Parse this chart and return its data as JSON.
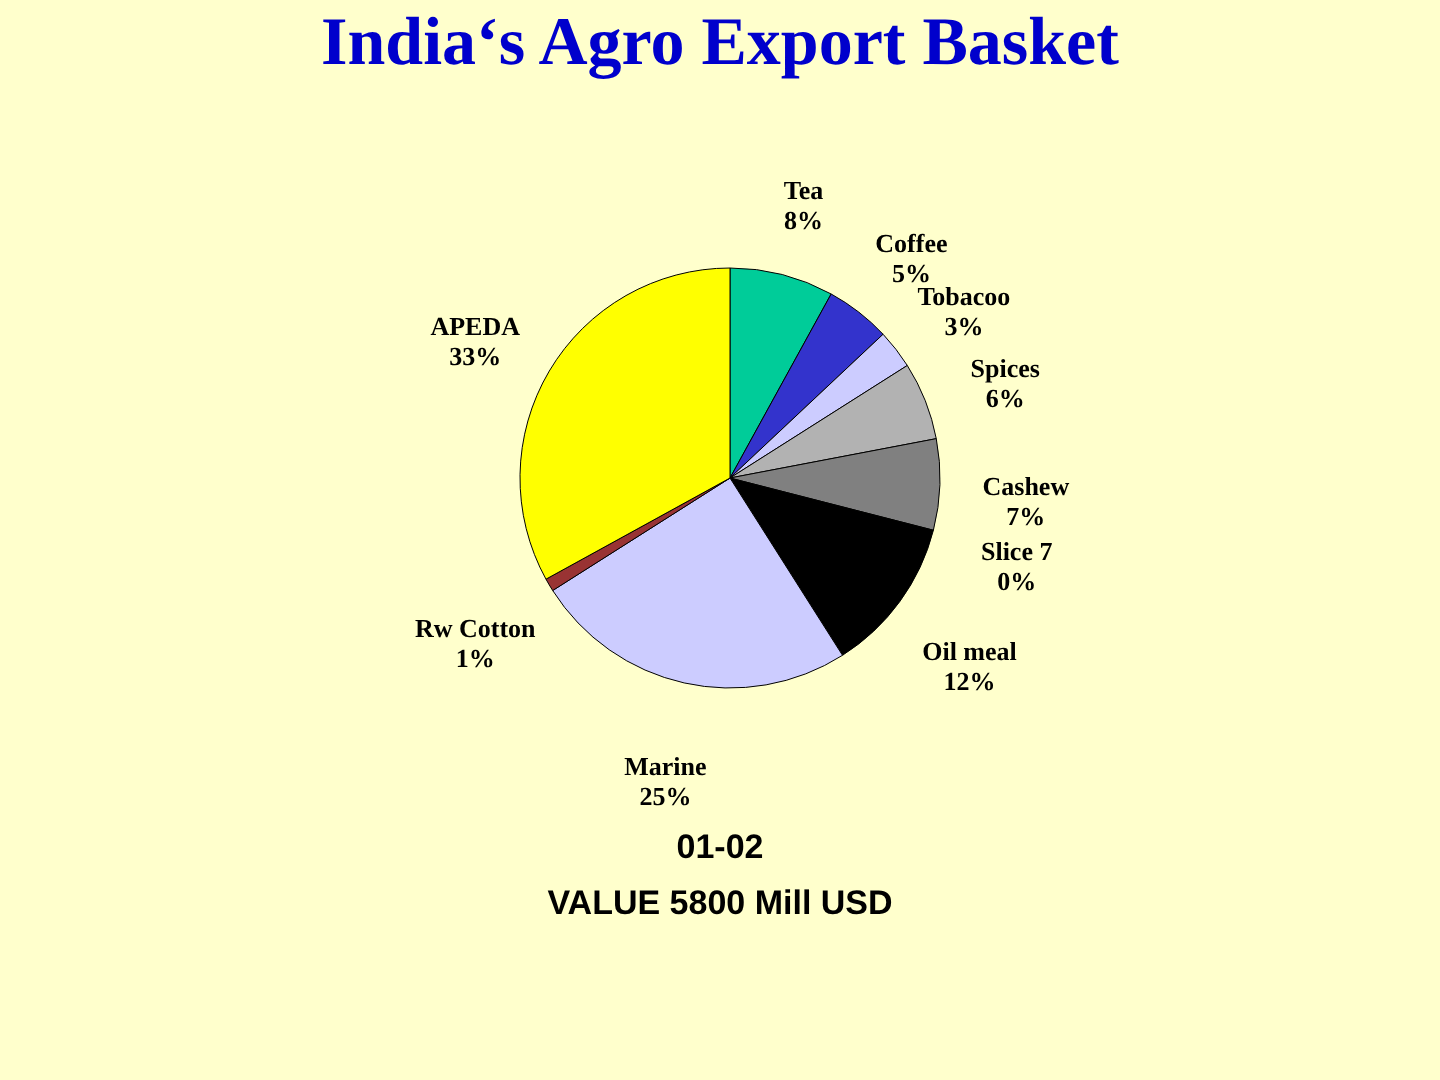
{
  "chart_data": {
    "type": "pie",
    "title": "India‘s Agro Export Basket",
    "categories": [
      "Tea",
      "Coffee",
      "Tobacoo",
      "Spices",
      "Cashew",
      "Slice 7",
      "Oil meal",
      "Marine",
      "Rw Cotton",
      "APEDA"
    ],
    "values": [
      8,
      5,
      3,
      6,
      7,
      0,
      12,
      25,
      1,
      33
    ],
    "value_labels": [
      "8%",
      "5%",
      "3%",
      "6%",
      "7%",
      "0%",
      "12%",
      "25%",
      "1%",
      "33%"
    ],
    "colors": [
      "#00cc99",
      "#3333cc",
      "#ccccff",
      "#b2b2b2",
      "#808080",
      "#3399cc",
      "#000000",
      "#ccccff",
      "#993333",
      "#ffff00"
    ],
    "annotations": [
      "01-02",
      "VALUE  5800 Mill USD"
    ],
    "legend": false
  }
}
